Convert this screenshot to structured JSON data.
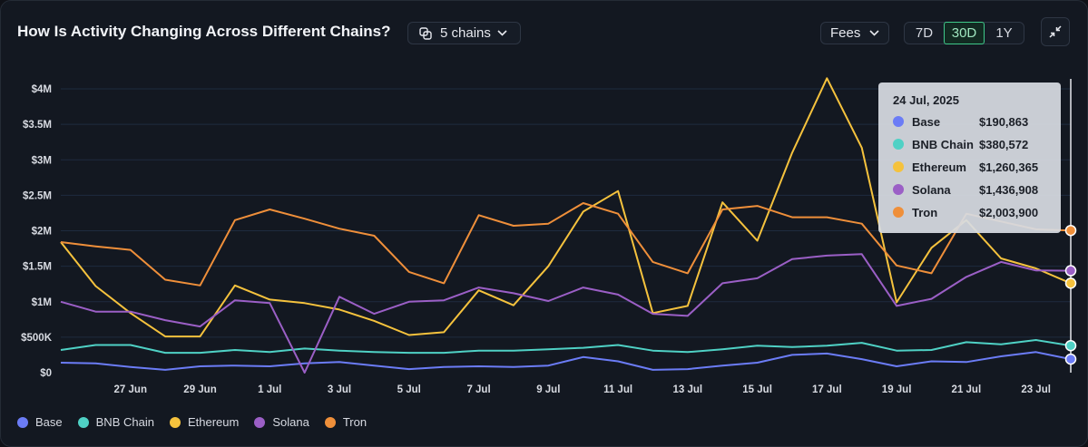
{
  "header": {
    "title": "How Is Activity Changing Across Different Chains?",
    "chains_label": "5 chains",
    "metric_label": "Fees",
    "ranges": [
      "7D",
      "30D",
      "1Y"
    ],
    "active_range": "30D"
  },
  "icons": {
    "chains": "layers-icon",
    "metric_dropdown": "chevron-down-icon",
    "chains_dropdown": "chevron-down-icon",
    "collapse": "collapse-icon"
  },
  "colors": {
    "Base": "#6b7cf6",
    "BNB Chain": "#4fd1c5",
    "Ethereum": "#f5c23d",
    "Solana": "#9b5fc6",
    "Tron": "#ef8f3a",
    "accent": "#3fc98a"
  },
  "tooltip": {
    "date": "24 Jul, 2025",
    "rows": [
      {
        "name": "Base",
        "value": "$190,863"
      },
      {
        "name": "BNB Chain",
        "value": "$380,572"
      },
      {
        "name": "Ethereum",
        "value": "$1,260,365"
      },
      {
        "name": "Solana",
        "value": "$1,436,908"
      },
      {
        "name": "Tron",
        "value": "$2,003,900"
      }
    ]
  },
  "chart_data": {
    "type": "line",
    "title": "How Is Activity Changing Across Different Chains?",
    "xlabel": "",
    "ylabel": "",
    "x": [
      "25 Jun",
      "26 Jun",
      "27 Jun",
      "28 Jun",
      "29 Jun",
      "30 Jun",
      "1 Jul",
      "2 Jul",
      "3 Jul",
      "4 Jul",
      "5 Jul",
      "6 Jul",
      "7 Jul",
      "8 Jul",
      "9 Jul",
      "10 Jul",
      "11 Jul",
      "12 Jul",
      "13 Jul",
      "14 Jul",
      "15 Jul",
      "16 Jul",
      "17 Jul",
      "18 Jul",
      "19 Jul",
      "20 Jul",
      "21 Jul",
      "22 Jul",
      "23 Jul",
      "24 Jul"
    ],
    "x_tick_labels": [
      "27 Jun",
      "29 Jun",
      "1 Jul",
      "3 Jul",
      "5 Jul",
      "7 Jul",
      "9 Jul",
      "11 Jul",
      "13 Jul",
      "15 Jul",
      "17 Jul",
      "19 Jul",
      "21 Jul",
      "23 Jul"
    ],
    "y_tick_labels": [
      "$0",
      "$500K",
      "$1M",
      "$1.5M",
      "$2M",
      "$2.5M",
      "$3M",
      "$3.5M",
      "$4M"
    ],
    "ylim": [
      0,
      4000000
    ],
    "grid": true,
    "legend_position": "bottom-left",
    "series": [
      {
        "name": "Base",
        "values": [
          140000,
          130000,
          80000,
          40000,
          90000,
          100000,
          90000,
          130000,
          150000,
          100000,
          50000,
          80000,
          90000,
          80000,
          100000,
          220000,
          160000,
          40000,
          50000,
          100000,
          140000,
          250000,
          270000,
          190000,
          90000,
          160000,
          150000,
          230000,
          290000,
          190863
        ]
      },
      {
        "name": "BNB Chain",
        "values": [
          320000,
          390000,
          390000,
          280000,
          280000,
          320000,
          290000,
          340000,
          310000,
          290000,
          280000,
          280000,
          310000,
          310000,
          330000,
          350000,
          390000,
          310000,
          290000,
          330000,
          380000,
          360000,
          380000,
          420000,
          310000,
          320000,
          430000,
          400000,
          460000,
          380572
        ]
      },
      {
        "name": "Ethereum",
        "values": [
          1840000,
          1220000,
          840000,
          510000,
          510000,
          1230000,
          1030000,
          980000,
          890000,
          730000,
          530000,
          570000,
          1160000,
          950000,
          1500000,
          2270000,
          2560000,
          840000,
          940000,
          2400000,
          1860000,
          3100000,
          4150000,
          3170000,
          990000,
          1760000,
          2150000,
          1610000,
          1470000,
          1260365
        ]
      },
      {
        "name": "Solana",
        "values": [
          1000000,
          860000,
          860000,
          740000,
          650000,
          1020000,
          980000,
          0,
          1070000,
          830000,
          1000000,
          1020000,
          1200000,
          1120000,
          1010000,
          1200000,
          1100000,
          830000,
          800000,
          1260000,
          1330000,
          1600000,
          1650000,
          1670000,
          940000,
          1040000,
          1350000,
          1560000,
          1440000,
          1436908
        ]
      },
      {
        "name": "Tron",
        "values": [
          1840000,
          1780000,
          1730000,
          1310000,
          1230000,
          2150000,
          2300000,
          2170000,
          2030000,
          1930000,
          1420000,
          1260000,
          2220000,
          2070000,
          2100000,
          2390000,
          2240000,
          1560000,
          1400000,
          2300000,
          2350000,
          2190000,
          2190000,
          2100000,
          1510000,
          1400000,
          2240000,
          2130000,
          2020000,
          2003900
        ]
      }
    ]
  }
}
